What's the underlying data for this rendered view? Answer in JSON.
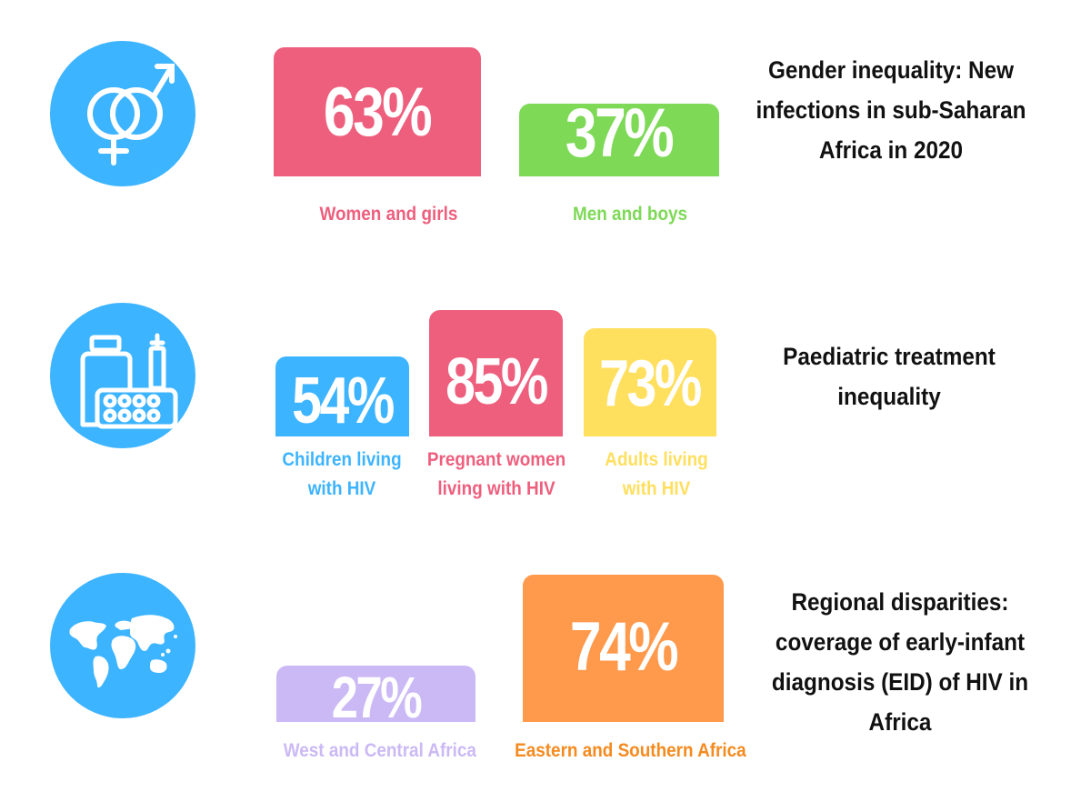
{
  "colors": {
    "icon_bg": "#3db4ff",
    "pink": "#ee5f7e",
    "green": "#7ed957",
    "blue": "#3db4ff",
    "yellow": "#ffdf5e",
    "lavender": "#cbb9f5",
    "orange": "#ff9a4d",
    "orange_label": "#f58a1f"
  },
  "icons": [
    "gender-symbols-icon",
    "medicine-icon",
    "world-map-icon"
  ],
  "chart_data": [
    {
      "type": "bar",
      "title": "Gender inequality: New infections in sub-Saharan Africa in 2020",
      "categories": [
        "Women and girls",
        "Men and boys"
      ],
      "values": [
        63,
        37
      ],
      "value_labels": [
        "63%",
        "37%"
      ],
      "unit": "%"
    },
    {
      "type": "bar",
      "title": "Paediatric treatment inequality",
      "categories": [
        "Children living with HIV",
        "Pregnant women living with HIV",
        "Adults living with HIV"
      ],
      "values": [
        54,
        85,
        73
      ],
      "value_labels": [
        "54%",
        "85%",
        "73%"
      ],
      "unit": "%"
    },
    {
      "type": "bar",
      "title": "Regional disparities: coverage of early-infant diagnosis (EID) of HIV in Africa",
      "categories": [
        "West and Central Africa",
        "Eastern and Southern Africa"
      ],
      "values": [
        27,
        74
      ],
      "value_labels": [
        "27%",
        "74%"
      ],
      "unit": "%"
    }
  ]
}
